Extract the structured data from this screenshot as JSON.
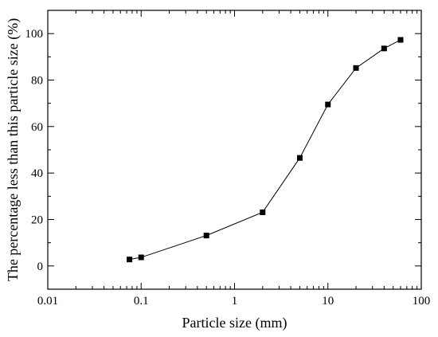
{
  "chart_data": {
    "type": "line",
    "title": "",
    "xlabel": "Particle size (mm)",
    "ylabel": "The percentage less than this particle size (%)",
    "x_scale": "log",
    "xlim": [
      0.01,
      100
    ],
    "ylim": [
      -10,
      110
    ],
    "x_ticks": [
      0.01,
      0.1,
      1,
      10,
      100
    ],
    "x_tick_labels": [
      "0.01",
      "0.1",
      "1",
      "10",
      "100"
    ],
    "y_ticks": [
      0,
      20,
      40,
      60,
      80,
      100
    ],
    "y_tick_labels": [
      "0",
      "20",
      "40",
      "60",
      "80",
      "100"
    ],
    "grid": false,
    "legend": "none",
    "series": [
      {
        "marker": "square",
        "color": "#000000",
        "x": [
          0.075,
          0.1,
          0.5,
          2,
          5,
          10,
          20,
          40,
          60
        ],
        "y": [
          2.8,
          3.7,
          13.1,
          23.1,
          46.5,
          69.5,
          85.2,
          93.6,
          97.3
        ]
      }
    ]
  }
}
